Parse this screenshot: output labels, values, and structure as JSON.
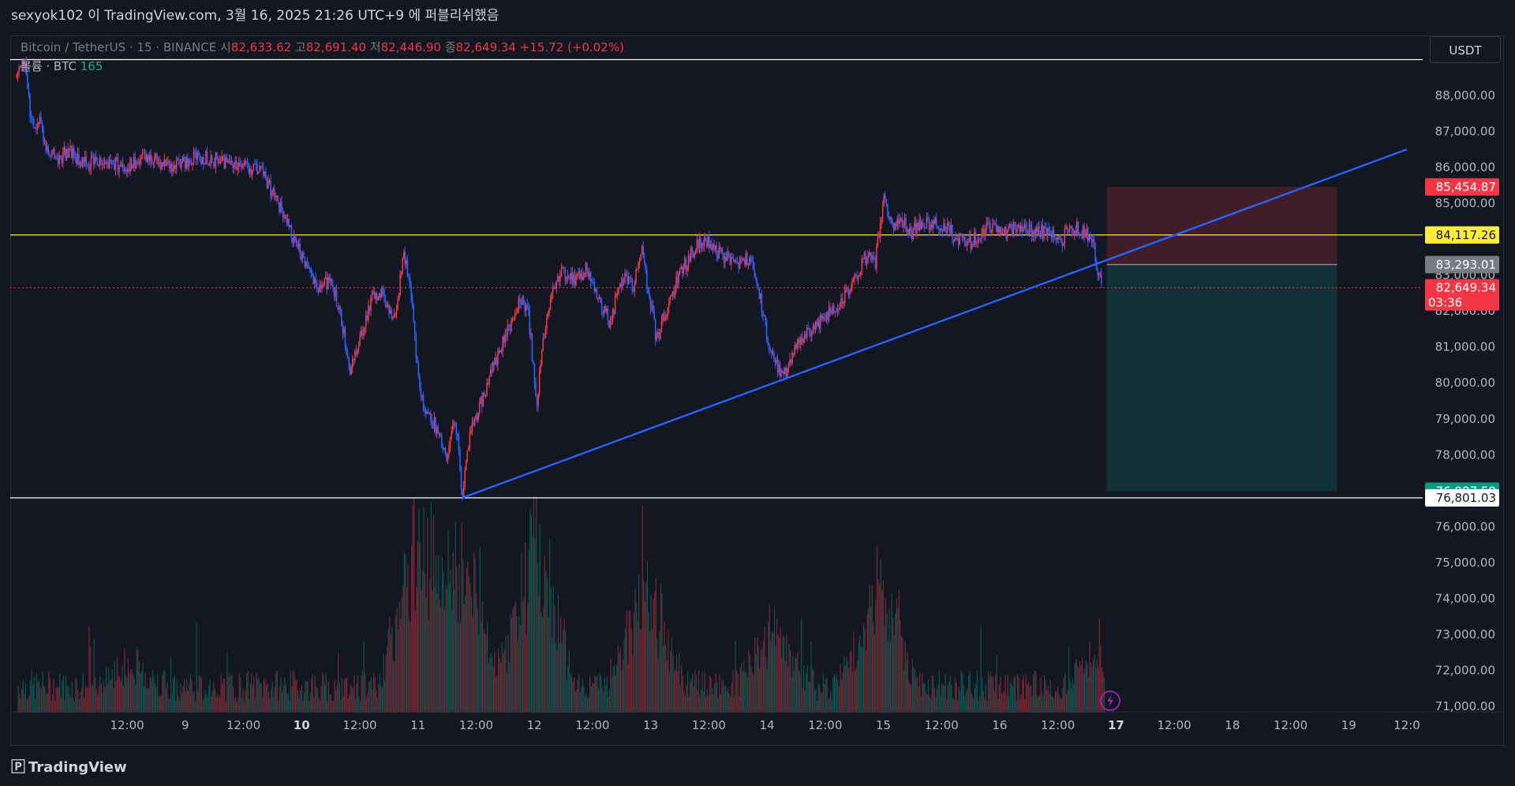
{
  "window": {
    "publish_caption": "sexyok102 이 TradingView.com, 3월 16, 2025 21:26 UTC+9 에 퍼블리쉬했음"
  },
  "legend": {
    "symbol": "Bitcoin / TetherUS · 15 · BINANCE",
    "open_label": "시",
    "open": "82,633.62",
    "high_label": "고",
    "high": "82,691.40",
    "low_label": "저",
    "low": "82,446.90",
    "close_label": "종",
    "close": "82,649.34",
    "change": "+15.72 (+0.02%)",
    "volume_label": "볼륨 · BTC",
    "volume_value": "165"
  },
  "currency_button": "USDT",
  "footer": {
    "brand": "TradingView",
    "logo_icon": "tradingview-logo-icon"
  },
  "colors": {
    "background": "#131722",
    "up": "#f23645",
    "down": "#2962ff",
    "trendline": "#2962ff",
    "level_yellow": "#ffeb3b",
    "level_white": "#ffffff",
    "stop_zone": "#f23645",
    "target_zone": "#089981"
  },
  "chart_data": {
    "type": "candlestick",
    "symbol": "BTCUSDT",
    "interval": "15",
    "y_axis": {
      "ylim": [
        70700,
        89200
      ],
      "ticks": [
        "88,000.00",
        "87,000.00",
        "86,000.00",
        "85,000.00",
        "83,000.00",
        "82,000.00",
        "81,000.00",
        "80,000.00",
        "79,000.00",
        "78,000.00",
        "76,000.00",
        "75,000.00",
        "74,000.00",
        "73,000.00",
        "72,000.00",
        "71,000.00"
      ],
      "tick_values": [
        88000,
        87000,
        86000,
        85000,
        83000,
        82000,
        81000,
        80000,
        79000,
        78000,
        76000,
        75000,
        74000,
        73000,
        72000,
        71000
      ]
    },
    "x_axis": {
      "range_days": [
        7.55,
        19.5
      ],
      "tick_labels": [
        "12:00",
        "9",
        "12:00",
        "10",
        "12:00",
        "11",
        "12:00",
        "12",
        "12:00",
        "13",
        "12:00",
        "14",
        "12:00",
        "15",
        "12:00",
        "16",
        "12:00",
        "17",
        "12:00",
        "18",
        "12:00",
        "19",
        "12:0"
      ],
      "tick_days": [
        8.5,
        9,
        9.5,
        10,
        10.5,
        11,
        11.5,
        12,
        12.5,
        13,
        13.5,
        14,
        14.5,
        15,
        15.5,
        16,
        16.5,
        17,
        17.5,
        18,
        18.5,
        19,
        19.5
      ],
      "bold_ticks": [
        "10",
        "17"
      ]
    },
    "price_path": [
      [
        7.55,
        88500
      ],
      [
        7.62,
        88900
      ],
      [
        7.68,
        87200
      ],
      [
        7.75,
        87300
      ],
      [
        7.8,
        86600
      ],
      [
        7.9,
        86200
      ],
      [
        8.0,
        86500
      ],
      [
        8.1,
        86100
      ],
      [
        8.3,
        86200
      ],
      [
        8.5,
        86000
      ],
      [
        8.7,
        86300
      ],
      [
        8.9,
        86000
      ],
      [
        9.1,
        86300
      ],
      [
        9.3,
        86200
      ],
      [
        9.45,
        86100
      ],
      [
        9.55,
        86000
      ],
      [
        9.65,
        85900
      ],
      [
        9.8,
        85000
      ],
      [
        9.95,
        83800
      ],
      [
        10.05,
        83300
      ],
      [
        10.15,
        82600
      ],
      [
        10.25,
        82900
      ],
      [
        10.35,
        81600
      ],
      [
        10.42,
        80300
      ],
      [
        10.5,
        81300
      ],
      [
        10.6,
        82300
      ],
      [
        10.7,
        82500
      ],
      [
        10.8,
        81700
      ],
      [
        10.88,
        83700
      ],
      [
        10.95,
        82200
      ],
      [
        11.0,
        80300
      ],
      [
        11.05,
        79300
      ],
      [
        11.15,
        78800
      ],
      [
        11.25,
        77900
      ],
      [
        11.3,
        78900
      ],
      [
        11.35,
        78300
      ],
      [
        11.38,
        76800
      ],
      [
        11.45,
        78600
      ],
      [
        11.55,
        79500
      ],
      [
        11.65,
        80500
      ],
      [
        11.78,
        81500
      ],
      [
        11.88,
        82400
      ],
      [
        11.95,
        81900
      ],
      [
        12.02,
        79400
      ],
      [
        12.08,
        81200
      ],
      [
        12.15,
        82600
      ],
      [
        12.25,
        83100
      ],
      [
        12.35,
        82800
      ],
      [
        12.45,
        83200
      ],
      [
        12.55,
        82300
      ],
      [
        12.65,
        81700
      ],
      [
        12.75,
        82900
      ],
      [
        12.85,
        82700
      ],
      [
        12.92,
        83800
      ],
      [
        13.0,
        82200
      ],
      [
        13.05,
        81200
      ],
      [
        13.15,
        82200
      ],
      [
        13.25,
        83000
      ],
      [
        13.35,
        83600
      ],
      [
        13.45,
        84000
      ],
      [
        13.55,
        83700
      ],
      [
        13.65,
        83500
      ],
      [
        13.75,
        83200
      ],
      [
        13.85,
        83500
      ],
      [
        13.92,
        82800
      ],
      [
        14.0,
        81300
      ],
      [
        14.08,
        80500
      ],
      [
        14.15,
        80200
      ],
      [
        14.22,
        80800
      ],
      [
        14.3,
        81300
      ],
      [
        14.45,
        81700
      ],
      [
        14.55,
        82000
      ],
      [
        14.65,
        82300
      ],
      [
        14.75,
        82900
      ],
      [
        14.85,
        83500
      ],
      [
        14.93,
        83300
      ],
      [
        15.0,
        85100
      ],
      [
        15.08,
        84300
      ],
      [
        15.15,
        84500
      ],
      [
        15.25,
        84200
      ],
      [
        15.35,
        84500
      ],
      [
        15.45,
        84400
      ],
      [
        15.55,
        84300
      ],
      [
        15.65,
        84000
      ],
      [
        15.75,
        83900
      ],
      [
        15.85,
        84200
      ],
      [
        15.95,
        84400
      ],
      [
        16.05,
        84200
      ],
      [
        16.15,
        84400
      ],
      [
        16.25,
        84300
      ],
      [
        16.35,
        84200
      ],
      [
        16.45,
        84100
      ],
      [
        16.52,
        83900
      ],
      [
        16.6,
        84300
      ],
      [
        16.68,
        84300
      ],
      [
        16.75,
        84100
      ],
      [
        16.8,
        83900
      ],
      [
        16.84,
        83200
      ],
      [
        16.86,
        82900
      ],
      [
        16.88,
        82650
      ]
    ],
    "volume_peaks": [
      [
        8.5,
        160
      ],
      [
        11.0,
        1050
      ],
      [
        11.38,
        900
      ],
      [
        12.0,
        980
      ],
      [
        12.95,
        700
      ],
      [
        14.05,
        380
      ],
      [
        14.95,
        680
      ],
      [
        16.85,
        200
      ]
    ],
    "trendline": {
      "from": {
        "day": 11.38,
        "price": 76800
      },
      "to": {
        "day": 19.5,
        "price": 86500
      },
      "color": "#2962ff"
    },
    "horizontal_levels": [
      {
        "price": 84117.26,
        "label": "84,117.26",
        "color": "#ffeb3b"
      },
      {
        "price": 76801.03,
        "label": "76,801.03",
        "color": "#ffffff"
      },
      {
        "price": 89000,
        "label": "",
        "color": "#ffffff"
      }
    ],
    "position_tool": {
      "start_day": 16.92,
      "end_day": 18.9,
      "stop_price": 85454.87,
      "stop_label": "85,454.87",
      "entry_price": 83293.01,
      "entry_label": "83,293.01",
      "target_price": 76987.59,
      "target_label": "76,987.59"
    },
    "last_price": {
      "price": 82649.34,
      "label": "82,649.34",
      "countdown": "03:36"
    }
  }
}
